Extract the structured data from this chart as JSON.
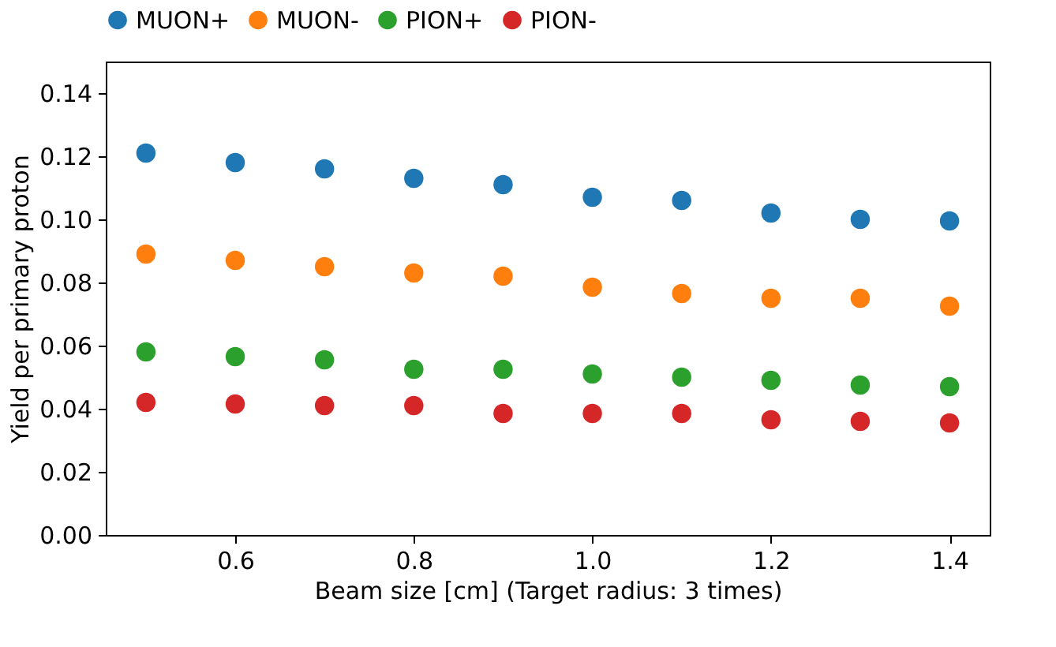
{
  "chart_data": {
    "type": "scatter",
    "xlabel": "Beam size [cm] (Target radius: 3 times)",
    "ylabel": "Yield per primary proton",
    "x": [
      0.5,
      0.6,
      0.7,
      0.8,
      0.9,
      1.0,
      1.1,
      1.2,
      1.3,
      1.4
    ],
    "series": [
      {
        "name": "MUON+",
        "color": "#1f77b4",
        "values": [
          0.121,
          0.118,
          0.116,
          0.113,
          0.111,
          0.107,
          0.106,
          0.102,
          0.1,
          0.0995
        ]
      },
      {
        "name": "MUON-",
        "color": "#ff7f0e",
        "values": [
          0.089,
          0.087,
          0.085,
          0.083,
          0.082,
          0.0785,
          0.0765,
          0.075,
          0.075,
          0.0725
        ]
      },
      {
        "name": "PION+",
        "color": "#2ca02c",
        "values": [
          0.058,
          0.0565,
          0.0555,
          0.0525,
          0.0525,
          0.051,
          0.05,
          0.049,
          0.0475,
          0.047
        ]
      },
      {
        "name": "PION-",
        "color": "#d62728",
        "values": [
          0.042,
          0.0415,
          0.041,
          0.041,
          0.0385,
          0.0385,
          0.0385,
          0.0365,
          0.036,
          0.0355
        ]
      }
    ],
    "xlim": [
      0.455,
      1.445
    ],
    "xticks": [
      0.6,
      0.8,
      {
        "value": 1,
        "label": "1.0"
      },
      1.2,
      1.4
    ],
    "ylim": [
      0,
      0.15
    ],
    "yticks": [
      {
        "value": 0,
        "label": "0.00"
      },
      0.02,
      0.04,
      0.06,
      0.08,
      {
        "value": 0.1,
        "label": "0.10"
      },
      0.12,
      0.14
    ],
    "legend": "top",
    "marker": "circle",
    "grid": false
  }
}
